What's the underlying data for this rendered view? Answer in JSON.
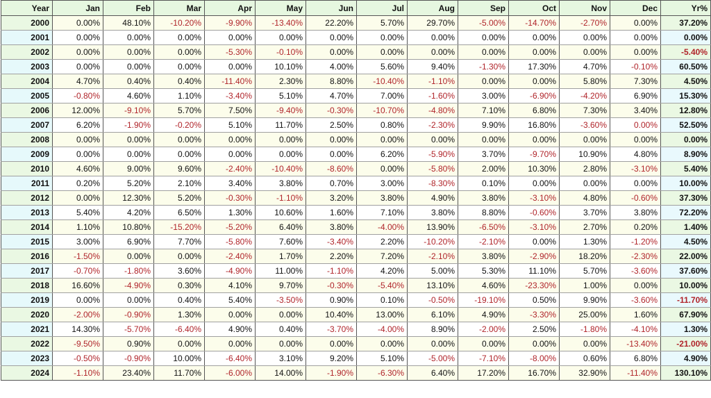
{
  "table": {
    "headers": [
      "Year",
      "Jan",
      "Feb",
      "Mar",
      "Apr",
      "May",
      "Jun",
      "Jul",
      "Aug",
      "Sep",
      "Oct",
      "Nov",
      "Dec",
      "Yr%"
    ],
    "negative_color": "#b0242a",
    "rows": [
      {
        "year": "2000",
        "months": [
          "0.00%",
          "48.10%",
          "-10.20%",
          "-9.90%",
          "-13.40%",
          "22.20%",
          "5.70%",
          "29.70%",
          "-5.00%",
          "-14.70%",
          "-2.70%",
          "0.00%"
        ],
        "total": "37.20%"
      },
      {
        "year": "2001",
        "months": [
          "0.00%",
          "0.00%",
          "0.00%",
          "0.00%",
          "0.00%",
          "0.00%",
          "0.00%",
          "0.00%",
          "0.00%",
          "0.00%",
          "0.00%",
          "0.00%"
        ],
        "total": "0.00%"
      },
      {
        "year": "2002",
        "months": [
          "0.00%",
          "0.00%",
          "0.00%",
          "-5.30%",
          "-0.10%",
          "0.00%",
          "0.00%",
          "0.00%",
          "0.00%",
          "0.00%",
          "0.00%",
          "0.00%"
        ],
        "total": "-5.40%"
      },
      {
        "year": "2003",
        "months": [
          "0.00%",
          "0.00%",
          "0.00%",
          "0.00%",
          "10.10%",
          "4.00%",
          "5.60%",
          "9.40%",
          "-1.30%",
          "17.30%",
          "4.70%",
          "-0.10%"
        ],
        "total": "60.50%"
      },
      {
        "year": "2004",
        "months": [
          "4.70%",
          "0.40%",
          "0.40%",
          "-11.40%",
          "2.30%",
          "8.80%",
          "-10.40%",
          "-1.10%",
          "0.00%",
          "0.00%",
          "5.80%",
          "7.30%"
        ],
        "total": "4.50%"
      },
      {
        "year": "2005",
        "months": [
          "-0.80%",
          "4.60%",
          "1.10%",
          "-3.40%",
          "5.10%",
          "4.70%",
          "7.00%",
          "-1.60%",
          "3.00%",
          "-6.90%",
          "-4.20%",
          "6.90%"
        ],
        "total": "15.30%"
      },
      {
        "year": "2006",
        "months": [
          "12.00%",
          "-9.10%",
          "5.70%",
          "7.50%",
          "-9.40%",
          "-0.30%",
          "-10.70%",
          "-4.80%",
          "7.10%",
          "6.80%",
          "7.30%",
          "3.40%"
        ],
        "total": "12.80%"
      },
      {
        "year": "2007",
        "months": [
          "6.20%",
          "-1.90%",
          "-0.20%",
          "5.10%",
          "11.70%",
          "2.50%",
          "0.80%",
          "-2.30%",
          "9.90%",
          "16.80%",
          "-3.60%",
          "0.00%"
        ],
        "total": "52.50%",
        "neg_zero": [
          11
        ]
      },
      {
        "year": "2008",
        "months": [
          "0.00%",
          "0.00%",
          "0.00%",
          "0.00%",
          "0.00%",
          "0.00%",
          "0.00%",
          "0.00%",
          "0.00%",
          "0.00%",
          "0.00%",
          "0.00%"
        ],
        "total": "0.00%"
      },
      {
        "year": "2009",
        "months": [
          "0.00%",
          "0.00%",
          "0.00%",
          "0.00%",
          "0.00%",
          "0.00%",
          "6.20%",
          "-5.90%",
          "3.70%",
          "-9.70%",
          "10.90%",
          "4.80%"
        ],
        "total": "8.90%"
      },
      {
        "year": "2010",
        "months": [
          "4.60%",
          "9.00%",
          "9.60%",
          "-2.40%",
          "-10.40%",
          "-8.60%",
          "0.00%",
          "-5.80%",
          "2.00%",
          "10.30%",
          "2.80%",
          "-3.10%"
        ],
        "total": "5.40%"
      },
      {
        "year": "2011",
        "months": [
          "0.20%",
          "5.20%",
          "2.10%",
          "3.40%",
          "3.80%",
          "0.70%",
          "3.00%",
          "-8.30%",
          "0.10%",
          "0.00%",
          "0.00%",
          "0.00%"
        ],
        "total": "10.00%"
      },
      {
        "year": "2012",
        "months": [
          "0.00%",
          "12.30%",
          "5.20%",
          "-0.30%",
          "-1.10%",
          "3.20%",
          "3.80%",
          "4.90%",
          "3.80%",
          "-3.10%",
          "4.80%",
          "-0.60%"
        ],
        "total": "37.30%"
      },
      {
        "year": "2013",
        "months": [
          "5.40%",
          "4.20%",
          "6.50%",
          "1.30%",
          "10.60%",
          "1.60%",
          "7.10%",
          "3.80%",
          "8.80%",
          "-0.60%",
          "3.70%",
          "3.80%"
        ],
        "total": "72.20%"
      },
      {
        "year": "2014",
        "months": [
          "1.10%",
          "10.80%",
          "-15.20%",
          "-5.20%",
          "6.40%",
          "3.80%",
          "-4.00%",
          "13.90%",
          "-6.50%",
          "-3.10%",
          "2.70%",
          "0.20%"
        ],
        "total": "1.40%"
      },
      {
        "year": "2015",
        "months": [
          "3.00%",
          "6.90%",
          "7.70%",
          "-5.80%",
          "7.60%",
          "-3.40%",
          "2.20%",
          "-10.20%",
          "-2.10%",
          "0.00%",
          "1.30%",
          "-1.20%"
        ],
        "total": "4.50%"
      },
      {
        "year": "2016",
        "months": [
          "-1.50%",
          "0.00%",
          "0.00%",
          "-2.40%",
          "1.70%",
          "2.20%",
          "7.20%",
          "-2.10%",
          "3.80%",
          "-2.90%",
          "18.20%",
          "-2.30%"
        ],
        "total": "22.00%"
      },
      {
        "year": "2017",
        "months": [
          "-0.70%",
          "-1.80%",
          "3.60%",
          "-4.90%",
          "11.00%",
          "-1.10%",
          "4.20%",
          "5.00%",
          "5.30%",
          "11.10%",
          "5.70%",
          "-3.60%"
        ],
        "total": "37.60%"
      },
      {
        "year": "2018",
        "months": [
          "16.60%",
          "-4.90%",
          "0.30%",
          "4.10%",
          "9.70%",
          "-0.30%",
          "-5.40%",
          "13.10%",
          "4.60%",
          "-23.30%",
          "1.00%",
          "0.00%"
        ],
        "total": "10.00%"
      },
      {
        "year": "2019",
        "months": [
          "0.00%",
          "0.00%",
          "0.40%",
          "5.40%",
          "-3.50%",
          "0.90%",
          "0.10%",
          "-0.50%",
          "-19.10%",
          "0.50%",
          "9.90%",
          "-3.60%"
        ],
        "total": "-11.70%"
      },
      {
        "year": "2020",
        "months": [
          "-2.00%",
          "-0.90%",
          "1.30%",
          "0.00%",
          "0.00%",
          "10.40%",
          "13.00%",
          "6.10%",
          "4.90%",
          "-3.30%",
          "25.00%",
          "1.60%"
        ],
        "total": "67.90%"
      },
      {
        "year": "2021",
        "months": [
          "14.30%",
          "-5.70%",
          "-6.40%",
          "4.90%",
          "0.40%",
          "-3.70%",
          "-4.00%",
          "8.90%",
          "-2.00%",
          "2.50%",
          "-1.80%",
          "-4.10%"
        ],
        "total": "1.30%"
      },
      {
        "year": "2022",
        "months": [
          "-9.50%",
          "0.90%",
          "0.00%",
          "0.00%",
          "0.00%",
          "0.00%",
          "0.00%",
          "0.00%",
          "0.00%",
          "0.00%",
          "0.00%",
          "-13.40%"
        ],
        "total": "-21.00%"
      },
      {
        "year": "2023",
        "months": [
          "-0.50%",
          "-0.90%",
          "10.00%",
          "-6.40%",
          "3.10%",
          "9.20%",
          "5.10%",
          "-5.00%",
          "-7.10%",
          "-8.00%",
          "0.60%",
          "6.80%"
        ],
        "total": "4.90%"
      },
      {
        "year": "2024",
        "months": [
          "-1.10%",
          "23.40%",
          "11.70%",
          "-6.00%",
          "14.00%",
          "-1.90%",
          "-6.30%",
          "6.40%",
          "17.20%",
          "16.70%",
          "32.90%",
          "-11.40%"
        ],
        "total": "130.10%"
      }
    ]
  }
}
